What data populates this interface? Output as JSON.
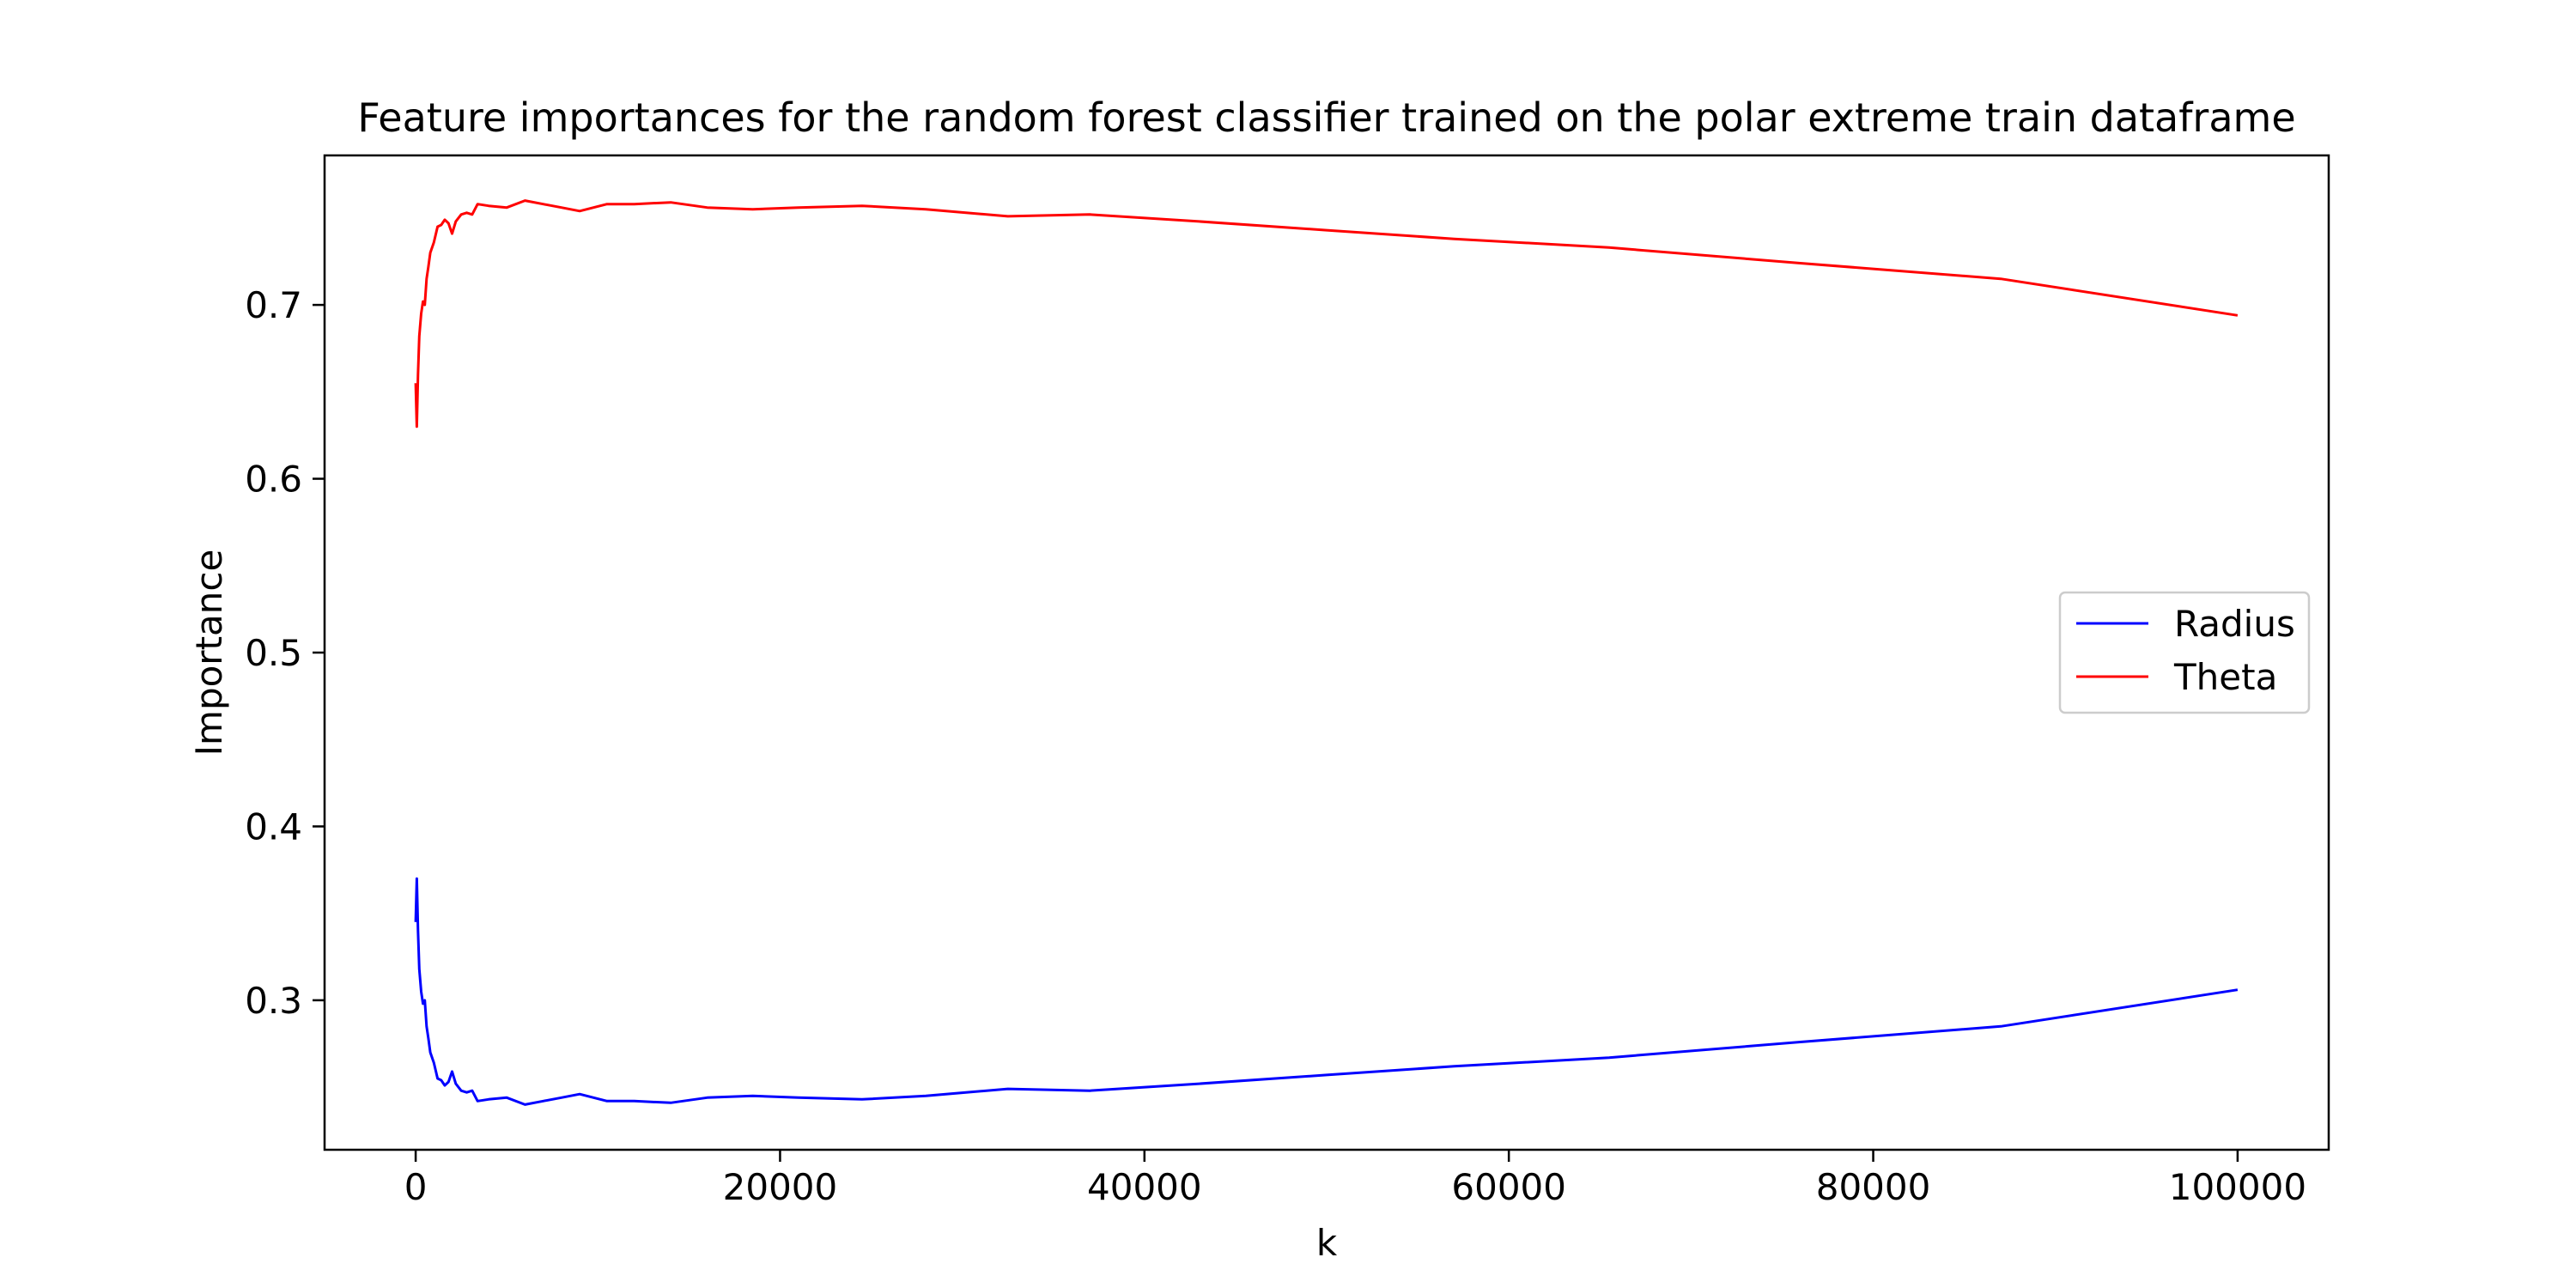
{
  "chart_data": {
    "type": "line",
    "title": "Feature importances for the random forest classifier trained on the polar extreme train dataframe",
    "xlabel": "k",
    "ylabel": "Importance",
    "xlim": [
      -5000,
      105000
    ],
    "ylim": [
      0.214,
      0.786
    ],
    "xticks": [
      0,
      20000,
      40000,
      60000,
      80000,
      100000
    ],
    "yticks": [
      0.3,
      0.4,
      0.5,
      0.6,
      0.7
    ],
    "grid": false,
    "legend": {
      "position": "center-right",
      "entries": [
        "Radius",
        "Theta"
      ]
    },
    "series": [
      {
        "name": "Radius",
        "color": "#0000ff",
        "points": [
          [
            1,
            0.345
          ],
          [
            60,
            0.37
          ],
          [
            130,
            0.34
          ],
          [
            200,
            0.318
          ],
          [
            300,
            0.305
          ],
          [
            400,
            0.298
          ],
          [
            500,
            0.3
          ],
          [
            600,
            0.285
          ],
          [
            700,
            0.278
          ],
          [
            800,
            0.27
          ],
          [
            1000,
            0.264
          ],
          [
            1200,
            0.255
          ],
          [
            1400,
            0.254
          ],
          [
            1600,
            0.251
          ],
          [
            1800,
            0.253
          ],
          [
            2000,
            0.259
          ],
          [
            2200,
            0.252
          ],
          [
            2500,
            0.248
          ],
          [
            2800,
            0.247
          ],
          [
            3100,
            0.248
          ],
          [
            3400,
            0.242
          ],
          [
            4000,
            0.243
          ],
          [
            5000,
            0.244
          ],
          [
            6000,
            0.24
          ],
          [
            7000,
            0.242
          ],
          [
            8000,
            0.244
          ],
          [
            9000,
            0.246
          ],
          [
            10500,
            0.242
          ],
          [
            12000,
            0.242
          ],
          [
            14000,
            0.241
          ],
          [
            16000,
            0.244
          ],
          [
            18500,
            0.245
          ],
          [
            21000,
            0.244
          ],
          [
            24500,
            0.243
          ],
          [
            28000,
            0.245
          ],
          [
            32500,
            0.249
          ],
          [
            37000,
            0.248
          ],
          [
            43000,
            0.252
          ],
          [
            50000,
            0.257
          ],
          [
            57000,
            0.262
          ],
          [
            65500,
            0.267
          ],
          [
            76000,
            0.276
          ],
          [
            87000,
            0.285
          ],
          [
            100000,
            0.306
          ]
        ]
      },
      {
        "name": "Theta",
        "color": "#ff0000",
        "points": [
          [
            1,
            0.655
          ],
          [
            60,
            0.63
          ],
          [
            130,
            0.66
          ],
          [
            200,
            0.682
          ],
          [
            300,
            0.695
          ],
          [
            400,
            0.702
          ],
          [
            500,
            0.7
          ],
          [
            600,
            0.715
          ],
          [
            700,
            0.722
          ],
          [
            800,
            0.73
          ],
          [
            1000,
            0.736
          ],
          [
            1200,
            0.745
          ],
          [
            1400,
            0.746
          ],
          [
            1600,
            0.749
          ],
          [
            1800,
            0.747
          ],
          [
            2000,
            0.741
          ],
          [
            2200,
            0.748
          ],
          [
            2500,
            0.752
          ],
          [
            2800,
            0.753
          ],
          [
            3100,
            0.752
          ],
          [
            3400,
            0.758
          ],
          [
            4000,
            0.757
          ],
          [
            5000,
            0.756
          ],
          [
            6000,
            0.76
          ],
          [
            7000,
            0.758
          ],
          [
            8000,
            0.756
          ],
          [
            9000,
            0.754
          ],
          [
            10500,
            0.758
          ],
          [
            12000,
            0.758
          ],
          [
            14000,
            0.759
          ],
          [
            16000,
            0.756
          ],
          [
            18500,
            0.755
          ],
          [
            21000,
            0.756
          ],
          [
            24500,
            0.757
          ],
          [
            28000,
            0.755
          ],
          [
            32500,
            0.751
          ],
          [
            37000,
            0.752
          ],
          [
            43000,
            0.748
          ],
          [
            50000,
            0.743
          ],
          [
            57000,
            0.738
          ],
          [
            65500,
            0.733
          ],
          [
            76000,
            0.724
          ],
          [
            87000,
            0.715
          ],
          [
            100000,
            0.694
          ]
        ]
      }
    ]
  }
}
